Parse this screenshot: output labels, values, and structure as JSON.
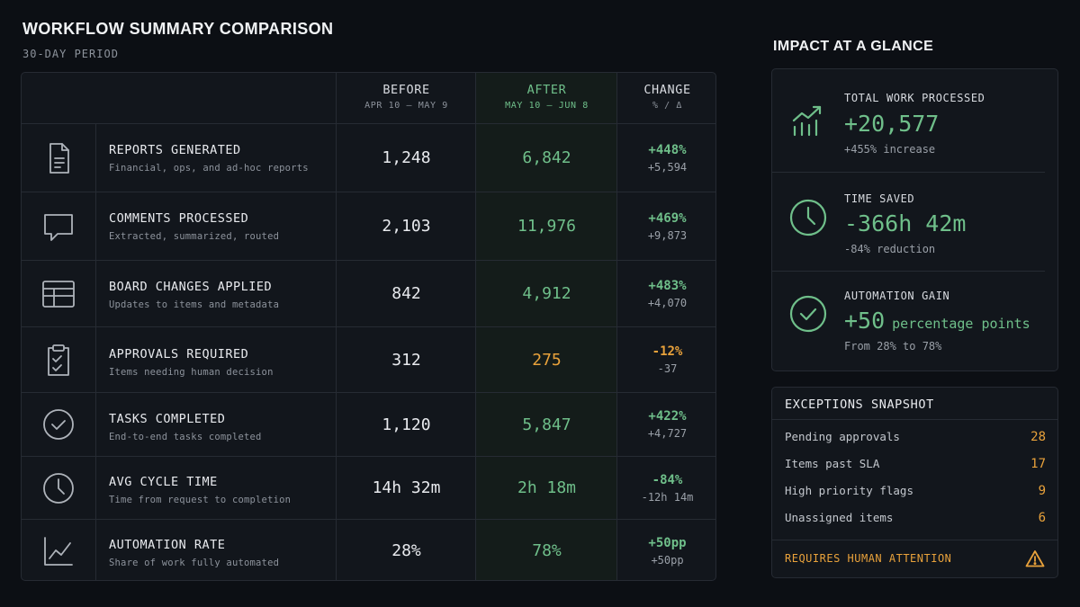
{
  "header": {
    "title": "WORKFLOW SUMMARY COMPARISON",
    "subtitle": "30-DAY PERIOD"
  },
  "table": {
    "columns": {
      "before": {
        "label": "BEFORE",
        "range": "APR 10 – MAY 9"
      },
      "after": {
        "label": "AFTER",
        "range": "MAY 10 – JUN 8"
      },
      "change": {
        "label": "CHANGE",
        "units": "% / Δ"
      }
    },
    "rows": [
      {
        "icon": "document-icon",
        "name": "REPORTS GENERATED",
        "desc": "Financial, ops, and ad-hoc reports",
        "before": "1,248",
        "after": "6,842",
        "pct": "+448%",
        "delta": "+5,594"
      },
      {
        "icon": "comment-icon",
        "name": "COMMENTS PROCESSED",
        "desc": "Extracted, summarized, routed",
        "before": "2,103",
        "after": "11,976",
        "pct": "+469%",
        "delta": "+9,873"
      },
      {
        "icon": "board-icon",
        "name": "BOARD CHANGES APPLIED",
        "desc": "Updates to items and metadata",
        "before": "842",
        "after": "4,912",
        "pct": "+483%",
        "delta": "+4,070"
      },
      {
        "icon": "clipboard-check-icon",
        "name": "APPROVALS REQUIRED",
        "desc": "Items needing human decision",
        "before": "312",
        "after": "275",
        "pct": "-12%",
        "delta": "-37"
      },
      {
        "icon": "check-circle-icon",
        "name": "TASKS COMPLETED",
        "desc": "End-to-end tasks completed",
        "before": "1,120",
        "after": "5,847",
        "pct": "+422%",
        "delta": "+4,727"
      },
      {
        "icon": "clock-icon",
        "name": "AVG CYCLE TIME",
        "desc": "Time from request to completion",
        "before": "14h 32m",
        "after": "2h 18m",
        "pct": "-84%",
        "delta": "-12h 14m"
      },
      {
        "icon": "line-chart-icon",
        "name": "AUTOMATION RATE",
        "desc": "Share of work fully automated",
        "before": "28%",
        "after": "78%",
        "pct": "+50pp",
        "delta": "+50pp"
      }
    ]
  },
  "impact": {
    "title": "IMPACT AT A GLANCE",
    "metrics": [
      {
        "icon": "trend-bars-icon",
        "label": "TOTAL WORK PROCESSED",
        "value": "+20,577",
        "unit": "",
        "sub": "+455% increase"
      },
      {
        "icon": "clock-icon",
        "label": "TIME SAVED",
        "value": "-366h 42m",
        "unit": "",
        "sub": "-84% reduction"
      },
      {
        "icon": "check-circle-icon",
        "label": "AUTOMATION GAIN",
        "value": "+50",
        "unit": "percentage points",
        "sub": "From 28% to 78%"
      }
    ]
  },
  "exceptions": {
    "title": "EXCEPTIONS SNAPSHOT",
    "items": [
      {
        "label": "Pending approvals",
        "value": "28"
      },
      {
        "label": "Items past SLA",
        "value": "17"
      },
      {
        "label": "High priority flags",
        "value": "9"
      },
      {
        "label": "Unassigned items",
        "value": "6"
      }
    ],
    "footer": "REQUIRES HUMAN ATTENTION",
    "footer_icon": "warning-icon"
  },
  "colors": {
    "background": "#0c0f14",
    "positive": "#6fbf8a",
    "warning": "#e9a23b"
  }
}
